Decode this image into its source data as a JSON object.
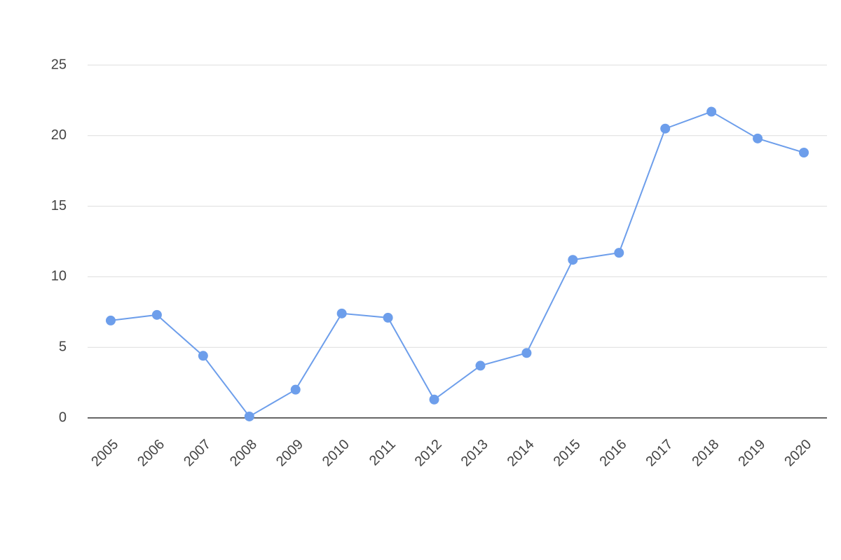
{
  "chart_data": {
    "type": "line",
    "categories": [
      "2005",
      "2006",
      "2007",
      "2008",
      "2009",
      "2010",
      "2011",
      "2012",
      "2013",
      "2014",
      "2015",
      "2016",
      "2017",
      "2018",
      "2019",
      "2020"
    ],
    "series": [
      {
        "color": "#6d9eeb",
        "values": [
          6.9,
          7.3,
          4.4,
          0.1,
          2.0,
          7.4,
          7.1,
          1.3,
          3.7,
          4.6,
          11.2,
          11.7,
          20.5,
          21.7,
          19.8,
          18.8
        ]
      }
    ],
    "ylim": [
      0,
      25
    ],
    "yticks": [
      0,
      5,
      10,
      15,
      20,
      25
    ],
    "grid": true
  }
}
